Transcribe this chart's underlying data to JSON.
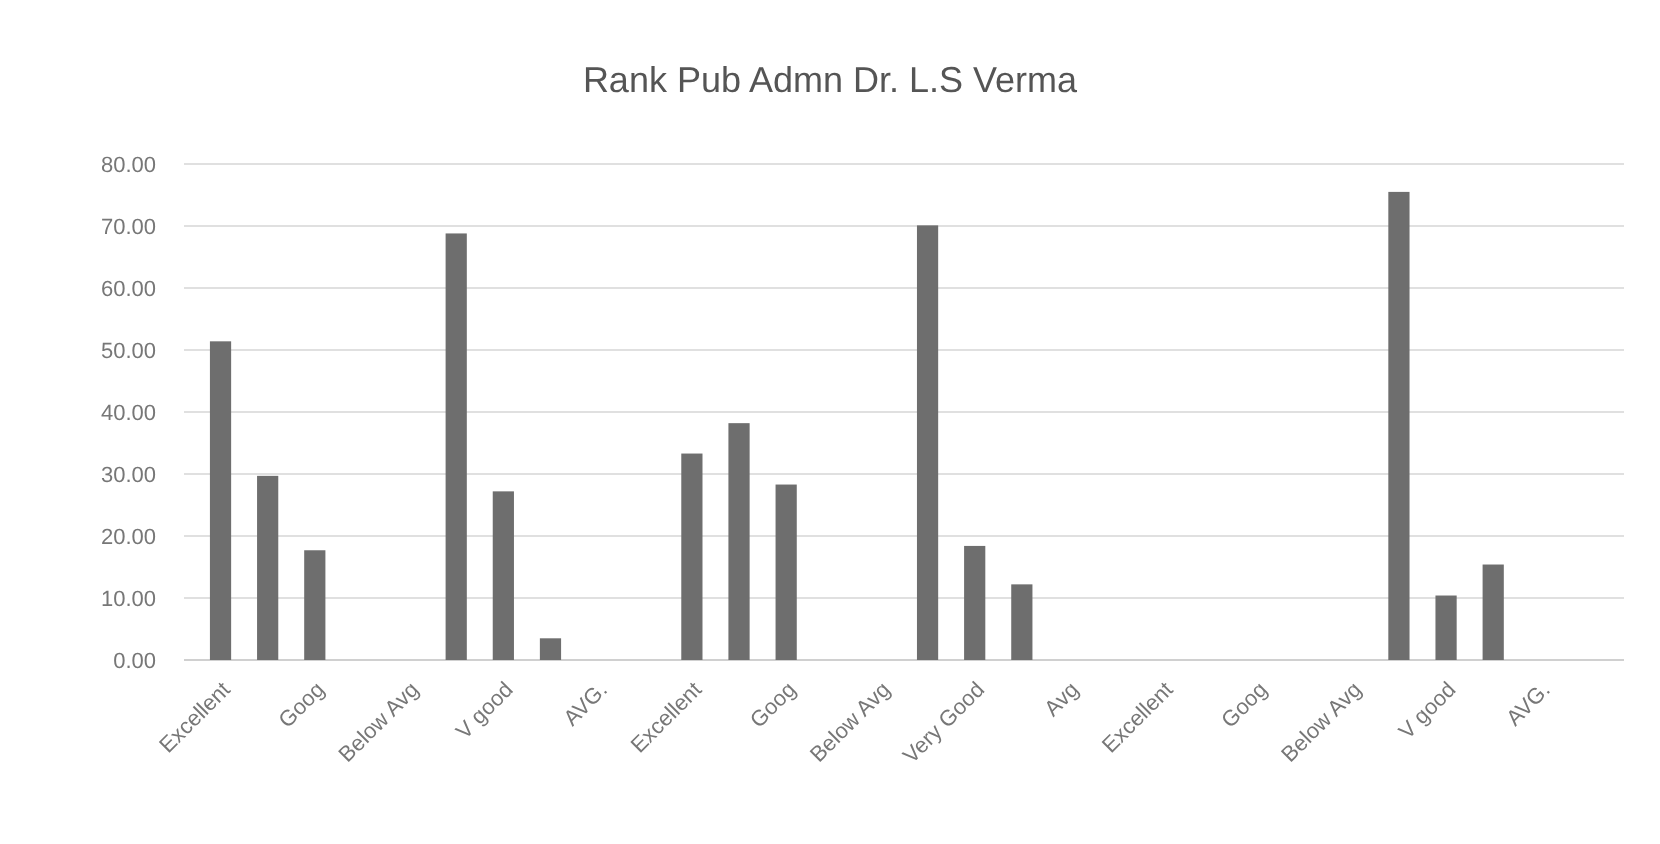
{
  "chart_data": {
    "type": "bar",
    "title": "Rank Pub Admn Dr. L.S Verma",
    "categories": [
      "Excellent",
      null,
      "Goog",
      null,
      "Below Avg",
      null,
      "V good",
      null,
      "AVG.",
      null,
      "Excellent",
      null,
      "Goog",
      null,
      "Below Avg",
      null,
      "Very Good",
      null,
      "Avg",
      null,
      "Excellent",
      null,
      "Goog",
      null,
      "Below Avg",
      null,
      "V good",
      null,
      "AVG.",
      null
    ],
    "values": [
      51.4,
      29.7,
      17.7,
      null,
      null,
      68.8,
      27.2,
      3.5,
      null,
      null,
      33.3,
      38.2,
      28.3,
      null,
      null,
      70.1,
      18.4,
      12.2,
      null,
      null,
      null,
      null,
      null,
      null,
      null,
      75.5,
      10.4,
      15.4,
      null,
      null
    ],
    "color": "#6e6e6e",
    "ylim": [
      0,
      80
    ],
    "yticks": [
      {
        "value": 0,
        "label": "0.00"
      },
      {
        "value": 10,
        "label": "10.00"
      },
      {
        "value": 20,
        "label": "20.00"
      },
      {
        "value": 30,
        "label": "30.00"
      },
      {
        "value": 40,
        "label": "40.00"
      },
      {
        "value": 50,
        "label": "50.00"
      },
      {
        "value": 60,
        "label": "60.00"
      },
      {
        "value": 70,
        "label": "70.00"
      },
      {
        "value": 80,
        "label": "80.00"
      }
    ],
    "grid": "y"
  }
}
